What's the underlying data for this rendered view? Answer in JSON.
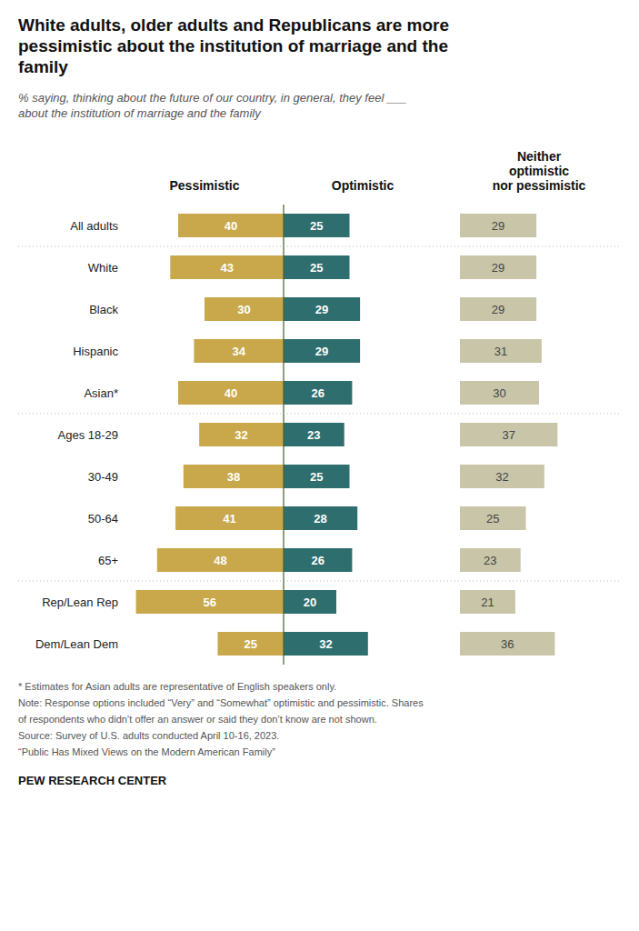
{
  "chart_data": {
    "type": "bar",
    "orientation": "horizontal",
    "title": "White adults, older adults and Republicans are more\npessimistic about the institution of marriage and the\nfamily",
    "subtitle": "% saying, thinking about the future of our country, in general, they feel ___\nabout the institution of marriage and the family",
    "categories": [
      "All adults",
      "White",
      "Black",
      "Hispanic",
      "Asian*",
      "Ages 18-29",
      "30-49",
      "50-64",
      "65+",
      "Rep/Lean Rep",
      "Dem/Lean Dem"
    ],
    "series": [
      {
        "name": "Pessimistic",
        "color": "#C8A84B",
        "values": [
          40,
          43,
          30,
          34,
          40,
          32,
          38,
          41,
          48,
          56,
          25
        ]
      },
      {
        "name": "Optimistic",
        "color": "#2E6E6E",
        "values": [
          25,
          25,
          29,
          29,
          26,
          23,
          25,
          28,
          26,
          20,
          32
        ]
      },
      {
        "name": "Neither\noptimistic\nnor pessimistic",
        "color": "#C8C5A8",
        "values": [
          29,
          29,
          29,
          31,
          30,
          37,
          32,
          25,
          23,
          21,
          36
        ]
      }
    ],
    "xlim": [
      0,
      60
    ],
    "data_labels": true,
    "tick_labels": "y",
    "annotations": [
      "* Estimates for Asian adults are representative of English speakers only.",
      "Note: Response options included “Very” and “Somewhat” optimistic and pessimistic. Shares",
      "of respondents who didn’t offer an answer or said they don’t know are not shown.",
      "Source: Survey of U.S. adults conducted April 10-16, 2023.",
      "“Public Has Mixed Views on the Modern American Family”",
      "PEW RESEARCH CENTER"
    ]
  }
}
